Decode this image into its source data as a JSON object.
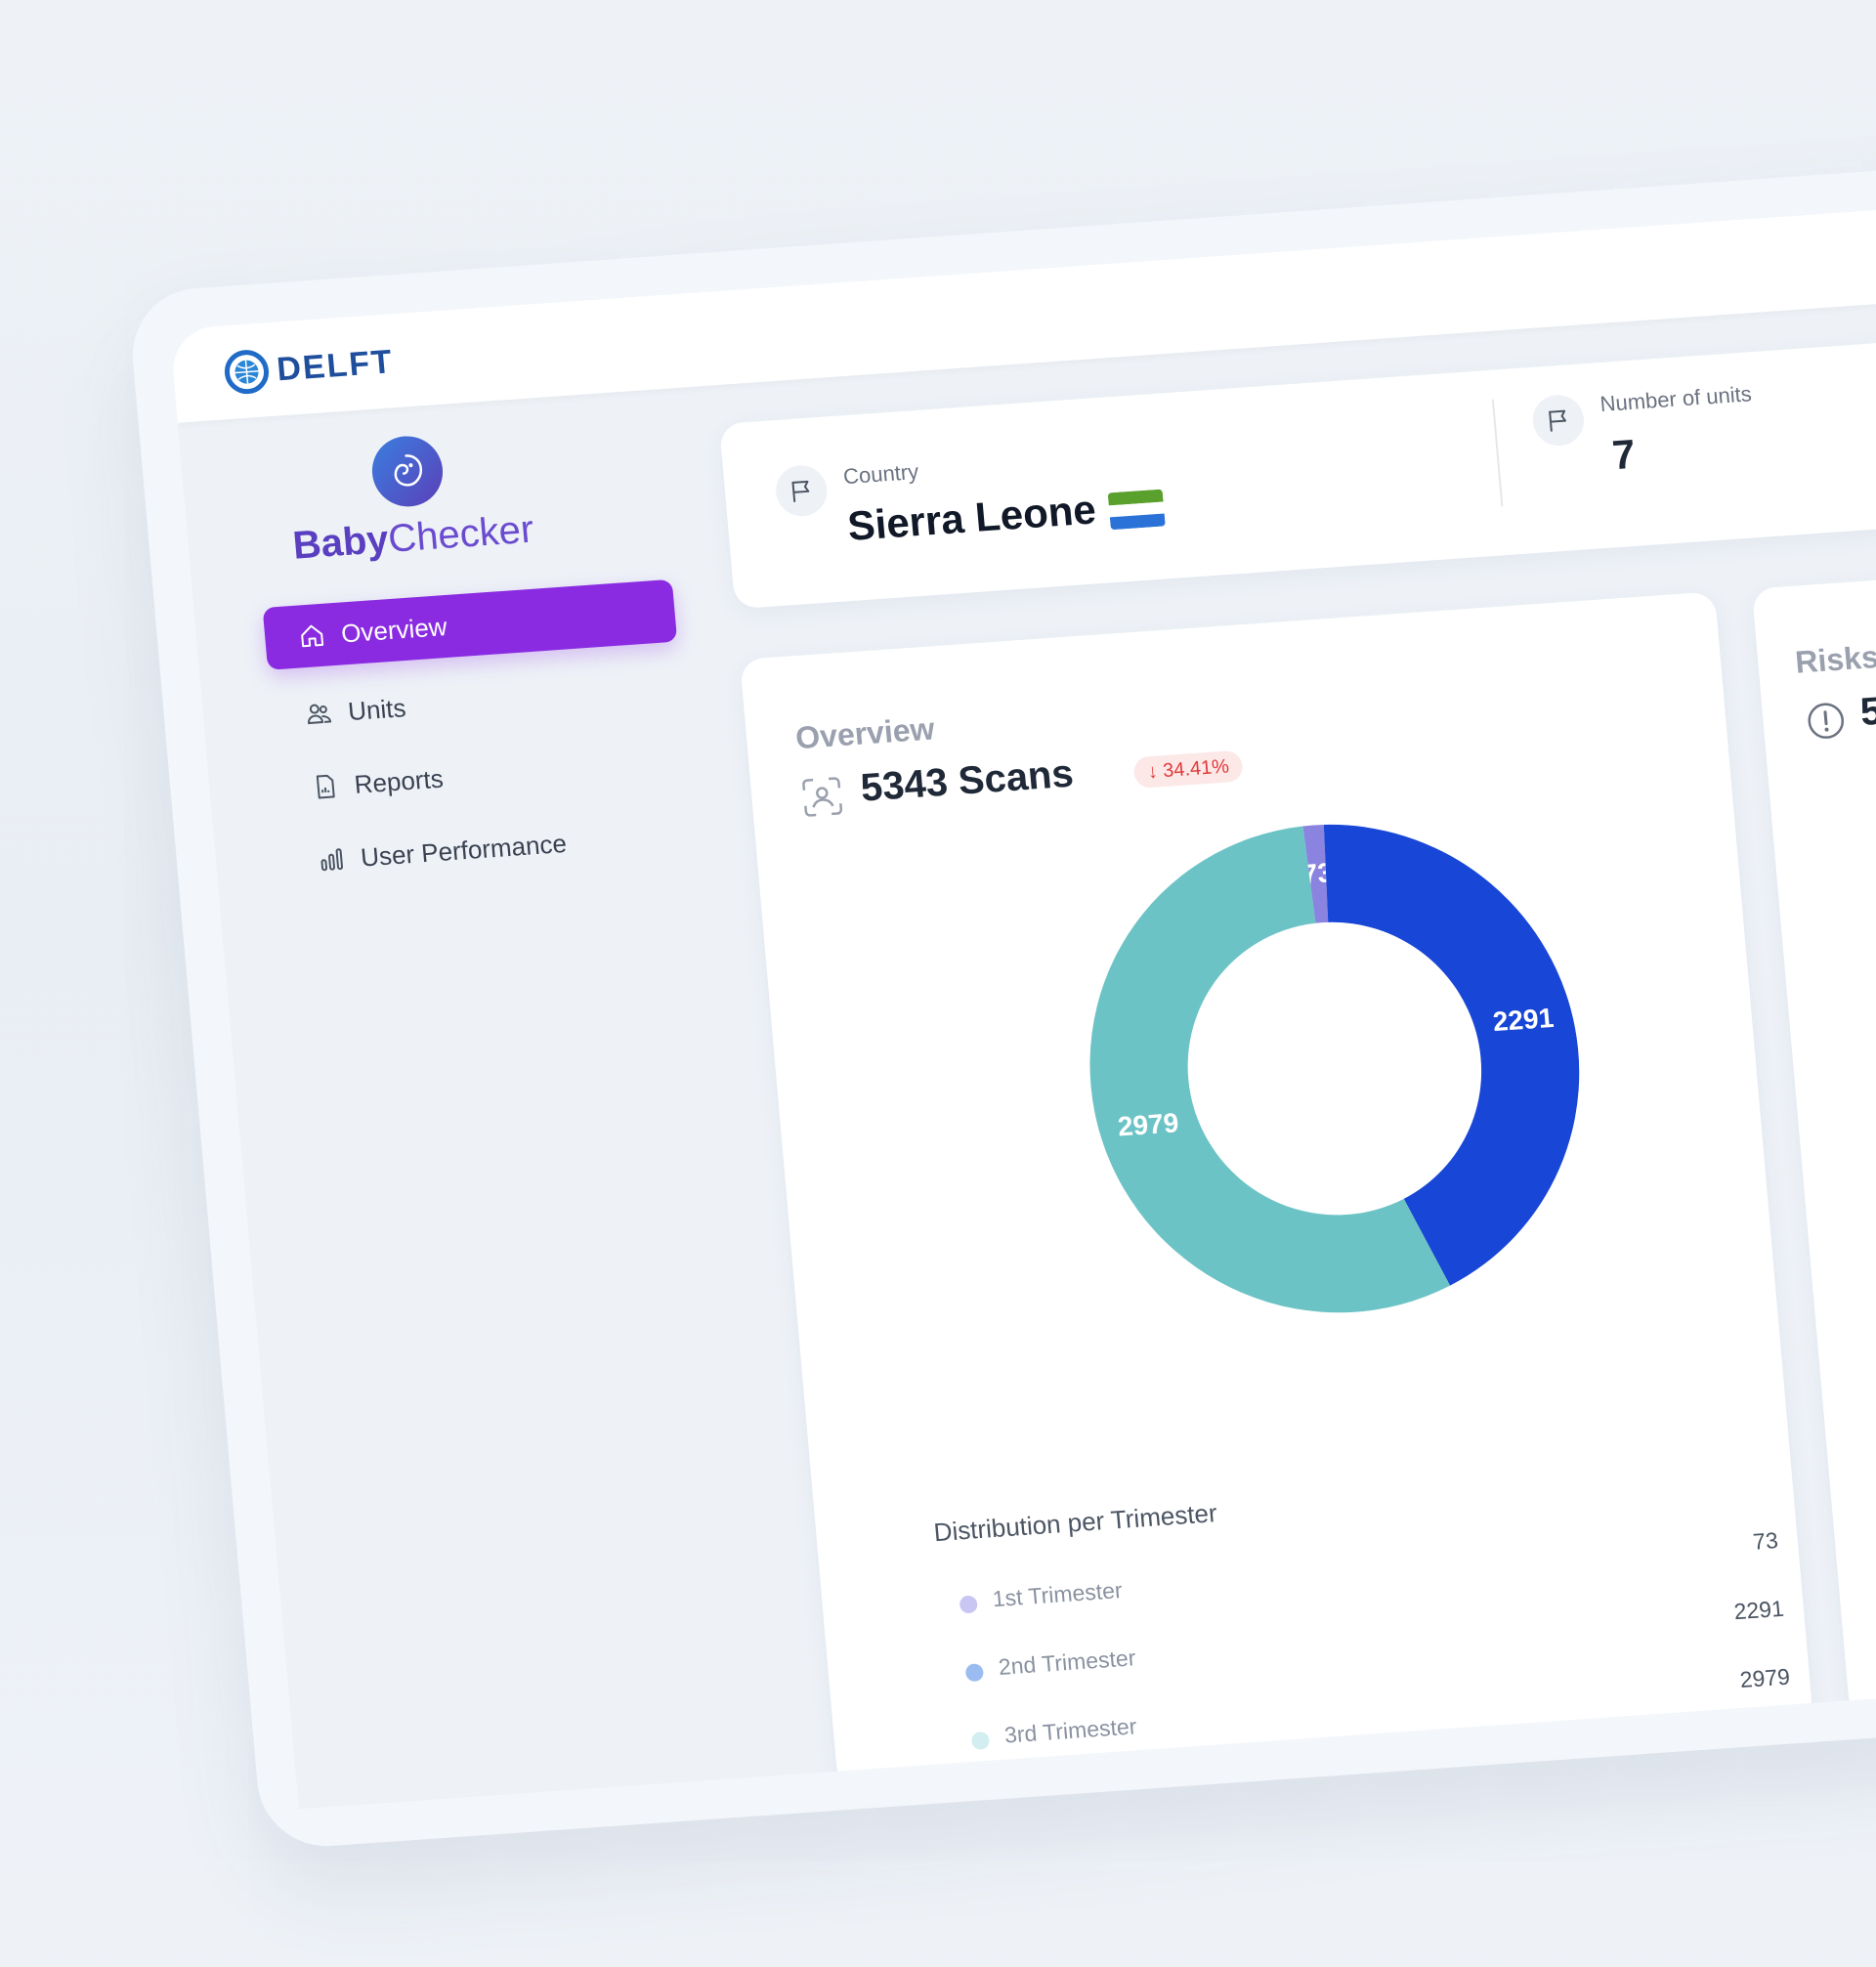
{
  "header": {
    "logo_text": "DELFT"
  },
  "brand": {
    "name_part1": "Baby",
    "name_part2": "Checker"
  },
  "sidebar": {
    "items": [
      {
        "label": "Overview",
        "icon": "home-icon",
        "active": true
      },
      {
        "label": "Units",
        "icon": "users-icon"
      },
      {
        "label": "Reports",
        "icon": "report-icon"
      },
      {
        "label": "User Performance",
        "icon": "bar-chart-icon"
      }
    ]
  },
  "country_card": {
    "label": "Country",
    "value": "Sierra Leone",
    "flag_colors": [
      "#5aa02c",
      "#ffffff",
      "#2b72d8"
    ]
  },
  "units_card": {
    "label": "Number of units",
    "value": "7"
  },
  "overview": {
    "title": "Overview",
    "scans": "5343 Scans",
    "delta": "↓ 34.41%",
    "distribution_title": "Distribution per Trimester"
  },
  "chart_data": {
    "type": "pie",
    "categories": [
      "1st Trimester",
      "2nd Trimester",
      "3rd Trimester"
    ],
    "values": [
      73,
      2291,
      2979
    ],
    "colors": [
      "#8a84e0",
      "#1846d6",
      "#6cc3c6"
    ],
    "legend_colors": [
      "#c9c6f3",
      "#9bbcf0",
      "#d2eef0"
    ],
    "title": "Distribution per Trimester"
  },
  "risks": {
    "title": "Risks",
    "value": "5"
  }
}
